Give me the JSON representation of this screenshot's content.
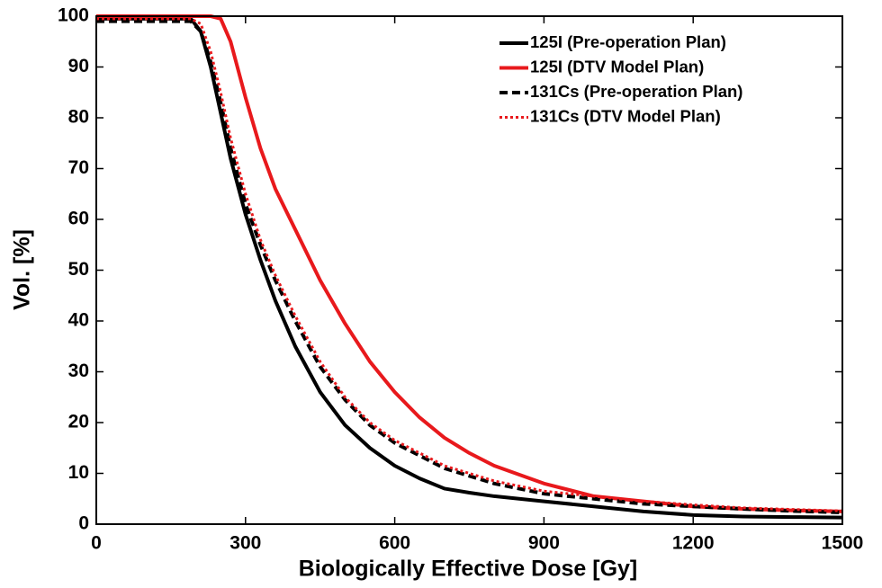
{
  "chart_data": {
    "type": "line",
    "xlabel": "Biologically Effective Dose [Gy]",
    "ylabel": "Vol. [%]",
    "x": [
      0,
      190,
      210,
      230,
      250,
      270,
      300,
      330,
      360,
      400,
      450,
      500,
      550,
      600,
      650,
      700,
      750,
      800,
      900,
      1000,
      1100,
      1200,
      1300,
      1400,
      1500
    ],
    "series": [
      {
        "name": "125I (Pre-operation Plan)",
        "color": "#000000",
        "dash": "solid",
        "values": [
          99.5,
          99.5,
          97,
          90,
          81,
          72,
          61,
          52,
          44,
          35,
          26,
          19.5,
          15,
          11.5,
          9,
          7,
          6.2,
          5.5,
          4.5,
          3.5,
          2.5,
          1.8,
          1.5,
          1.4,
          1.3
        ]
      },
      {
        "name": "125I (DTV Model Plan)",
        "color": "#e8191c",
        "dash": "solid",
        "values": [
          100,
          100,
          100,
          100,
          99.5,
          95,
          84,
          74,
          66,
          58,
          48,
          39.5,
          32,
          26,
          21,
          17,
          14,
          11.5,
          8,
          5.5,
          4.5,
          3.5,
          3,
          2.7,
          2.5
        ]
      },
      {
        "name": "131Cs (Pre-operation Plan)",
        "color": "#000000",
        "dash": "dash",
        "values": [
          99,
          99,
          97,
          91,
          83,
          74,
          63,
          55,
          48,
          40,
          31,
          24.5,
          19.5,
          16,
          13.5,
          11,
          9.5,
          8,
          6,
          5,
          4,
          3.5,
          3,
          2.6,
          2.3
        ]
      },
      {
        "name": "131Cs (DTV Model Plan)",
        "color": "#e8191c",
        "dash": "dot",
        "values": [
          99.5,
          99.5,
          98.5,
          93,
          85,
          76,
          65,
          56,
          49,
          41,
          32,
          25,
          20,
          16.5,
          14,
          11.5,
          10,
          8.5,
          6.5,
          5.5,
          4.5,
          3.8,
          3.2,
          2.9,
          2.6
        ]
      }
    ],
    "xlim": [
      0,
      1500
    ],
    "xticks": [
      0,
      300,
      600,
      900,
      1200,
      1500
    ],
    "ylim": [
      0,
      100
    ],
    "yticks": [
      0,
      10,
      20,
      30,
      40,
      50,
      60,
      70,
      80,
      90,
      100
    ],
    "legend": "upper right"
  }
}
